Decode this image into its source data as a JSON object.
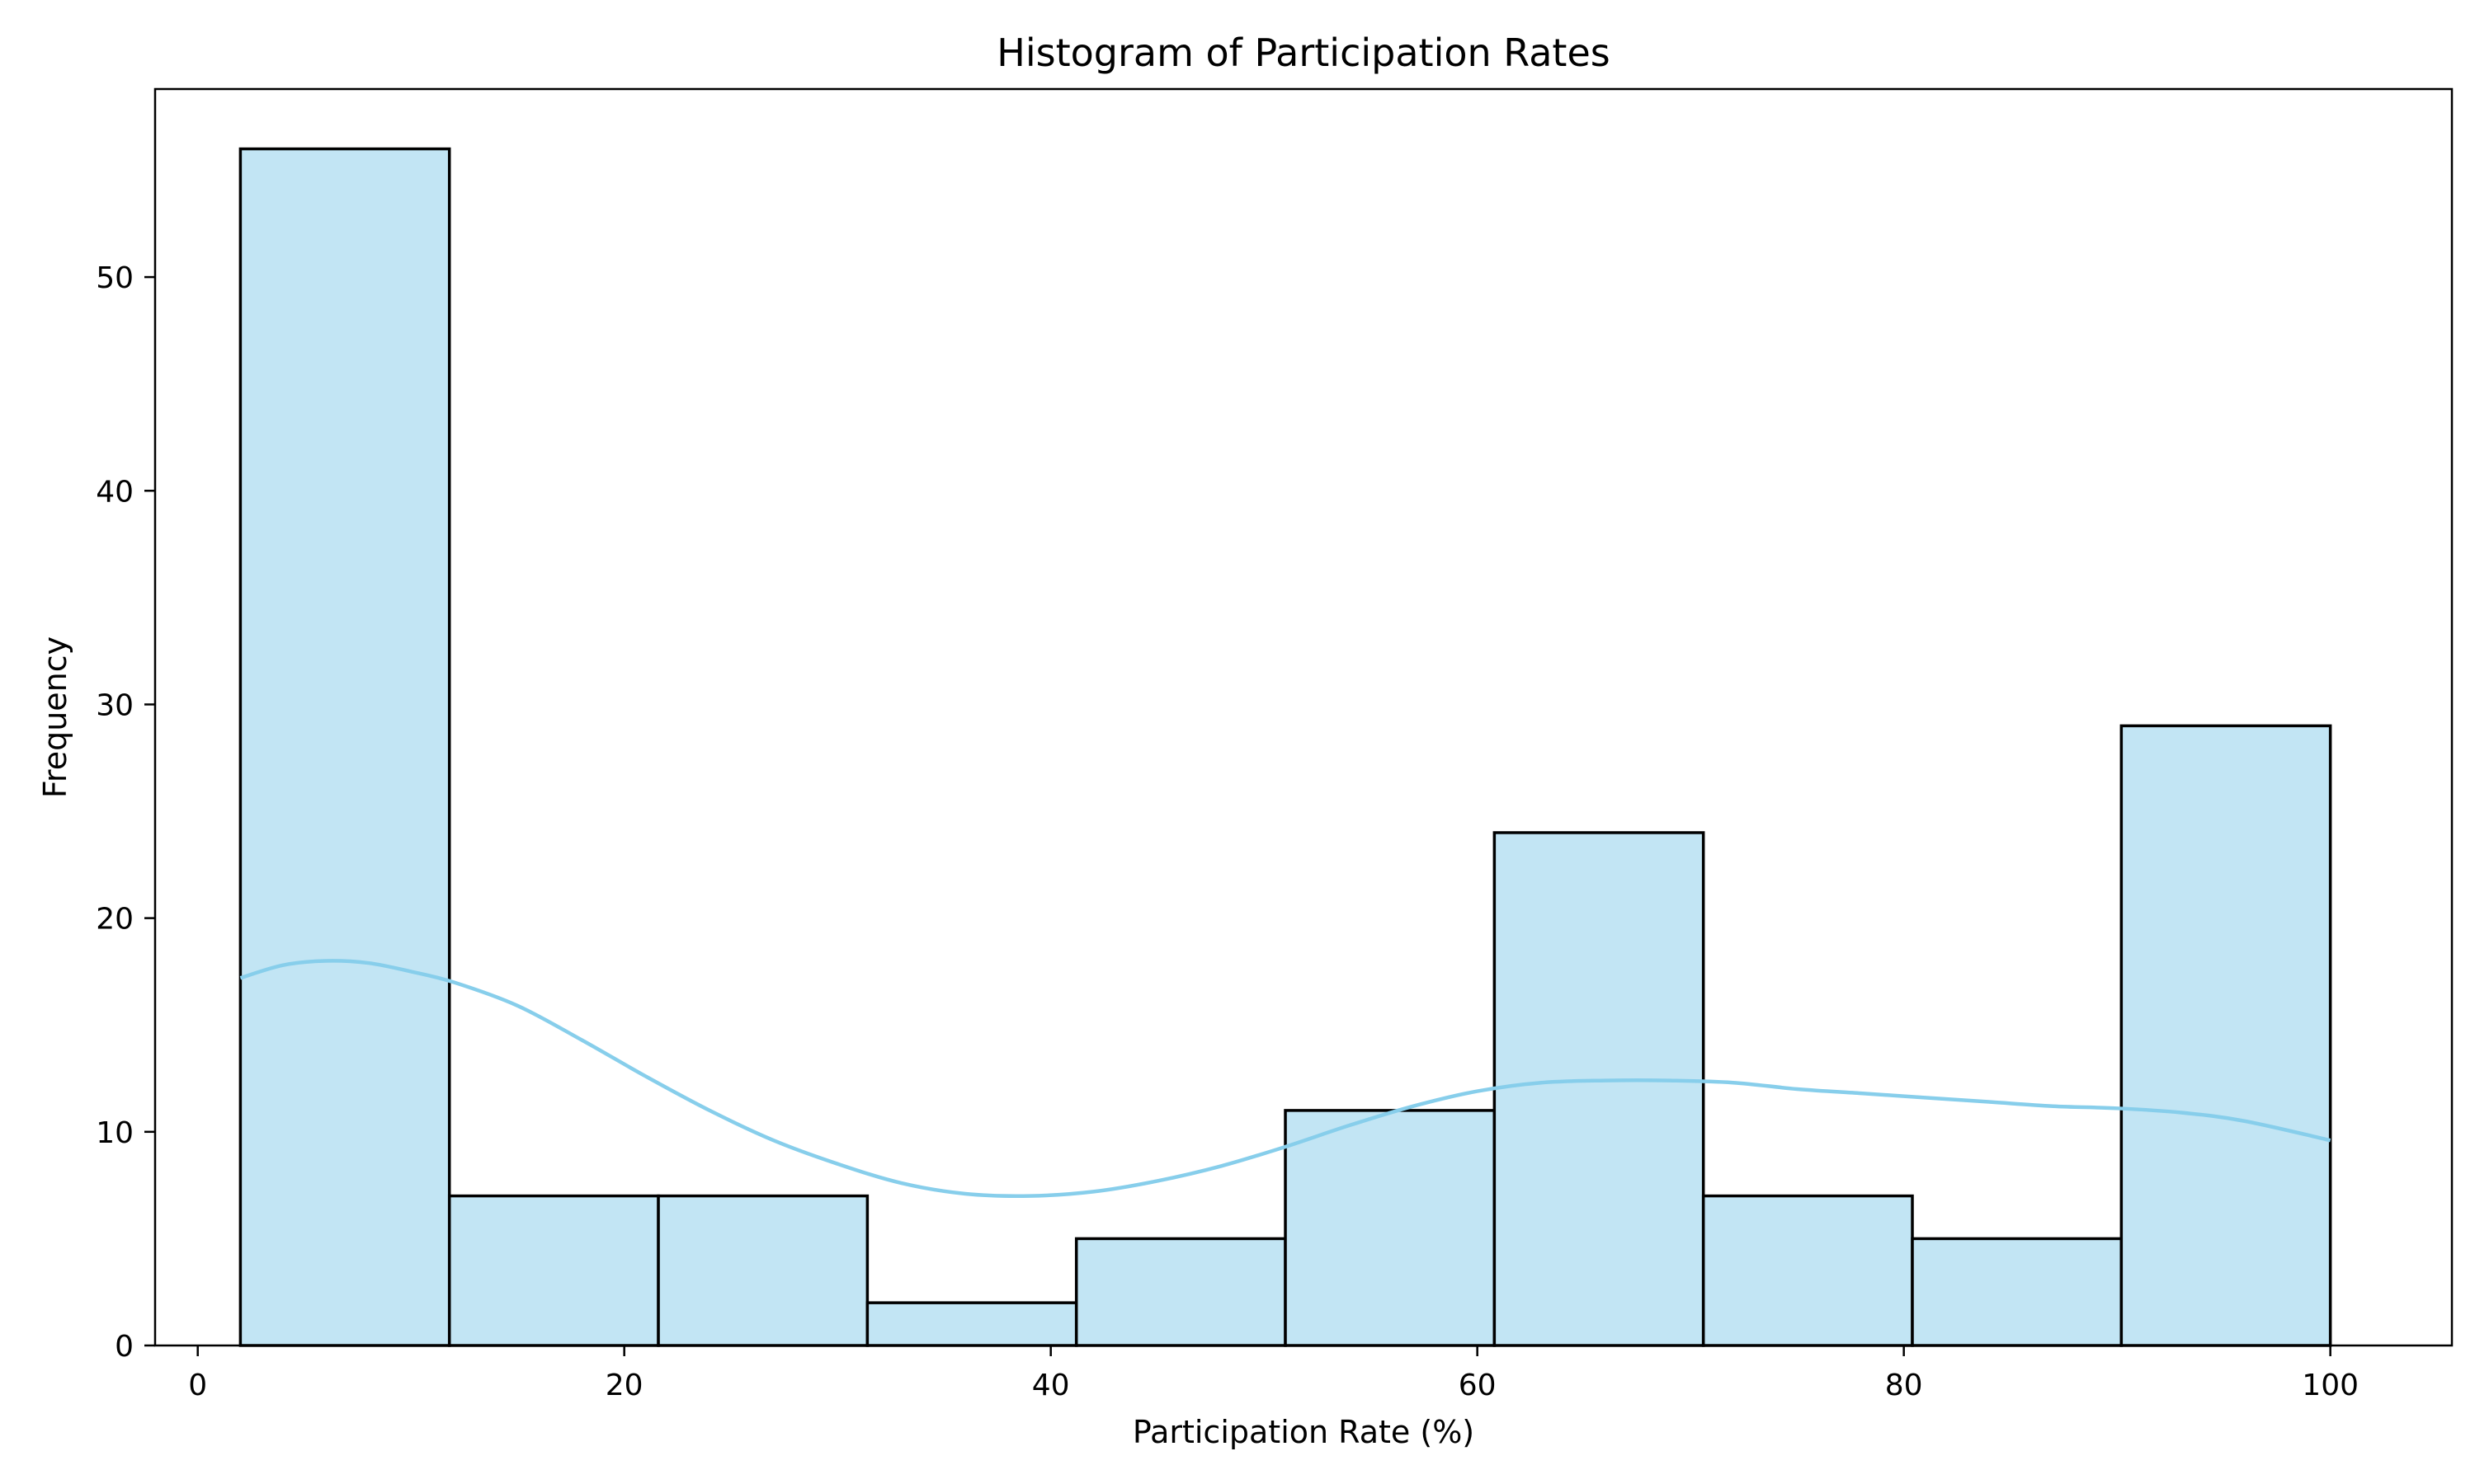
{
  "colors": {
    "bar_fill": "#c2e5f4",
    "kde_line": "#87ceeb",
    "bar_edge": "#000000"
  },
  "chart_data": {
    "type": "bar",
    "subtype": "histogram",
    "title": "Histogram of Participation Rates",
    "xlabel": "Participation Rate (%)",
    "ylabel": "Frequency",
    "xlim": [
      -2,
      105.7
    ],
    "ylim": [
      0,
      58.8
    ],
    "xticks": [
      0,
      20,
      40,
      60,
      80,
      100
    ],
    "yticks": [
      0,
      10,
      20,
      30,
      40,
      50
    ],
    "bin_edges": [
      2.0,
      11.8,
      21.6,
      31.4,
      41.2,
      51.0,
      60.8,
      70.6,
      80.4,
      90.2,
      100.0
    ],
    "values": [
      56,
      7,
      7,
      2,
      5,
      11,
      24,
      7,
      5,
      29
    ],
    "grid": false,
    "kde": {
      "x": [
        2,
        4,
        6,
        8,
        10,
        12,
        15,
        18,
        21,
        24,
        27,
        30,
        33,
        36,
        39,
        42,
        45,
        48,
        51,
        54,
        57,
        60,
        63,
        66,
        69,
        72,
        75,
        78,
        81,
        84,
        87,
        90,
        93,
        96,
        100
      ],
      "y": [
        17.2,
        17.8,
        18.0,
        17.9,
        17.5,
        17.0,
        15.9,
        14.3,
        12.6,
        11.0,
        9.6,
        8.5,
        7.6,
        7.1,
        7.0,
        7.2,
        7.7,
        8.4,
        9.3,
        10.3,
        11.2,
        11.9,
        12.3,
        12.4,
        12.4,
        12.3,
        12.0,
        11.8,
        11.6,
        11.4,
        11.2,
        11.1,
        10.9,
        10.5,
        9.6
      ]
    }
  }
}
